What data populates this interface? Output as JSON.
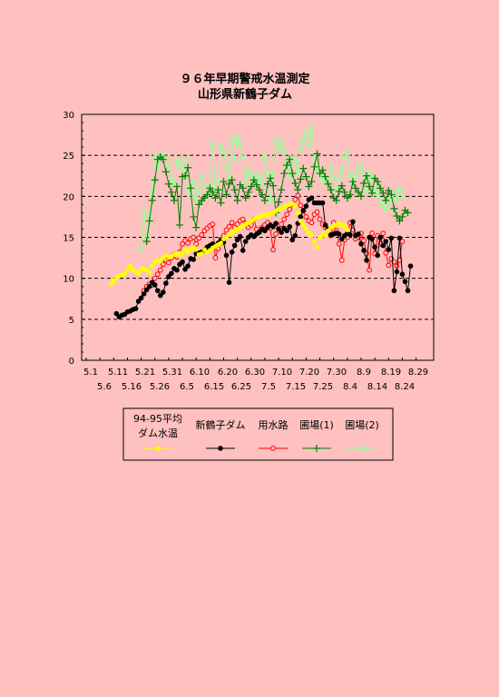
{
  "chart_data": {
    "type": "line",
    "title": "９６年早期警戒水温測定",
    "subtitle": "山形県新鶴子ダム",
    "xlabel": "",
    "ylabel": "",
    "ylim": [
      0,
      30
    ],
    "yticks": [
      "0",
      "5",
      "10",
      "15",
      "20",
      "25",
      "30"
    ],
    "x_start": "5.1",
    "x_end": "9.1",
    "xtick_labels_row1": [
      "5.1",
      "5.11",
      "5.21",
      "5.31",
      "6.10",
      "6.20",
      "6.30",
      "7.10",
      "7.20",
      "7.30",
      "8.9",
      "8.19",
      "8.29"
    ],
    "xtick_labels_row2": [
      "5.6",
      "5.16",
      "5.26",
      "6.5",
      "6.15",
      "6.25",
      "7.5",
      "7.15",
      "7.25",
      "8.4",
      "8.14",
      "8.24"
    ],
    "grid": "horizontal dashed",
    "legend_placement": "bottom",
    "series": [
      {
        "name": "94-95平均ダム水温",
        "name_line1": "94-95平均",
        "name_line2": "ダム水温",
        "color": "#ffff00",
        "marker": "dot",
        "start_day": 9,
        "values": [
          9.3,
          9.7,
          10.1,
          10.3,
          10.4,
          10.6,
          11.0,
          11.5,
          11.0,
          10.8,
          10.6,
          11.1,
          11.2,
          11.0,
          10.7,
          11.5,
          12.0,
          12.2,
          12.1,
          12.5,
          12.8,
          12.6,
          12.7,
          12.9,
          13.0,
          12.8,
          13.1,
          13.5,
          13.2,
          13.6,
          13.8,
          13.5,
          12.9,
          13.0,
          13.5,
          13.2,
          13.4,
          13.7,
          13.9,
          14.1,
          14.3,
          14.8,
          15.0,
          15.3,
          15.6,
          15.8,
          16.0,
          16.2,
          16.4,
          16.6,
          16.8,
          17.0,
          17.2,
          17.4,
          17.5,
          17.7,
          17.8,
          17.6,
          17.9,
          18.0,
          18.2,
          18.4,
          18.5,
          18.7,
          18.9,
          19.0,
          19.1,
          18.8,
          18.0,
          17.0,
          16.5,
          16.0,
          15.5,
          15.2,
          14.5,
          13.8,
          15.0,
          15.4,
          15.2,
          15.8,
          16.2,
          16.4,
          16.5,
          16.7,
          16.5,
          16.4,
          15.9
        ]
      },
      {
        "name": "新鶴子ダム",
        "color": "#000000",
        "marker": "filled-circle",
        "start_day": 11,
        "values": [
          5.7,
          5.3,
          5.5,
          5.6,
          5.9,
          6.0,
          6.2,
          6.3,
          7.2,
          7.6,
          8.1,
          8.6,
          9.0,
          9.5,
          9.2,
          8.5,
          7.9,
          8.3,
          9.4,
          10.2,
          10.6,
          11.2,
          11.0,
          11.7,
          12.0,
          11.1,
          11.5,
          12.4,
          12.3,
          13.0,
          13.1,
          13.2,
          13.5,
          13.8,
          14.0,
          14.2,
          13.9,
          14.3,
          14.7,
          14.4,
          12.8,
          9.5,
          13.2,
          14.0,
          14.7,
          15.1,
          13.4,
          14.5,
          15.0,
          15.3,
          15.1,
          15.4,
          15.6,
          16.0,
          15.8,
          16.2,
          16.5,
          16.3,
          16.7,
          16.0,
          15.6,
          16.1,
          15.8,
          16.3,
          14.7,
          15.2,
          16.7,
          17.5,
          18.3,
          18.8,
          19.6,
          19.8,
          19.2,
          19.2,
          19.2,
          19.2,
          16.5,
          16.0,
          15.3,
          15.4,
          15.5,
          15.4,
          14.8,
          15.2,
          15.5,
          15.3,
          16.9,
          15.2,
          15.4,
          14.2,
          13.4,
          12.2,
          15.0,
          14.8,
          13.8,
          12.8,
          15.0,
          14.0,
          14.5,
          13.5,
          14.9,
          8.5,
          10.8,
          14.9,
          10.5,
          9.6,
          8.5,
          11.5
        ]
      },
      {
        "name": "用水路",
        "color": "#ff0000",
        "marker": "open-circle",
        "start_day": 21,
        "values": [
          8.5,
          9.0,
          9.3,
          9.2,
          10.0,
          10.5,
          11.0,
          11.7,
          12.2,
          11.9,
          12.5,
          12.9,
          12.6,
          13.2,
          14.2,
          14.6,
          14.3,
          14.8,
          15.0,
          14.2,
          14.9,
          15.3,
          15.8,
          16.1,
          16.4,
          16.6,
          12.5,
          13.6,
          14.3,
          15.2,
          15.9,
          16.3,
          16.8,
          16.2,
          16.6,
          17.0,
          17.2,
          16.7,
          16.2,
          16.5,
          17.2,
          16.0,
          15.7,
          16.2,
          16.5,
          16.8,
          16.1,
          13.5,
          15.4,
          16.0,
          16.6,
          17.2,
          17.8,
          18.4,
          19.0,
          19.6,
          20.1,
          18.9,
          18.2,
          17.5,
          17.0,
          16.8,
          17.8,
          18.1,
          17.2,
          16.6,
          16.2,
          16.0,
          15.2,
          16.8,
          15.8,
          14.2,
          12.2,
          14.7,
          15.0,
          16.8,
          15.9,
          14.8,
          15.0,
          15.5,
          14.6,
          13.0,
          11.0,
          15.5,
          13.0,
          15.2,
          14.2,
          15.5,
          13.1,
          11.6,
          12.4,
          12.0,
          11.5,
          12.2,
          14.5
        ]
      },
      {
        "name": "圃場(1)",
        "color": "#008000",
        "marker": "plus",
        "start_day": 22,
        "values": [
          14.5,
          17.0,
          19.5,
          22.0,
          24.5,
          24.8,
          24.5,
          23.0,
          21.5,
          20.5,
          19.5,
          21.2,
          16.5,
          22.4,
          22.5,
          23.5,
          21.0,
          17.5,
          16.2,
          19.0,
          19.5,
          19.8,
          20.2,
          21.0,
          20.5,
          19.8,
          20.8,
          19.2,
          21.8,
          20.2,
          21.5,
          22.0,
          20.8,
          19.5,
          21.4,
          21.0,
          19.8,
          20.5,
          21.2,
          22.0,
          21.4,
          20.8,
          20.2,
          19.5,
          21.5,
          22.2,
          21.3,
          18.0,
          19.3,
          20.8,
          22.8,
          23.8,
          24.5,
          22.8,
          21.6,
          20.8,
          22.1,
          23.4,
          22.4,
          21.2,
          21.8,
          23.6,
          25.2,
          22.8,
          23.2,
          22.4,
          21.5,
          20.8,
          19.8,
          19.5,
          20.6,
          21.3,
          20.5,
          19.8,
          20.2,
          21.8,
          21.0,
          20.5,
          20.0,
          21.6,
          22.5,
          21.2,
          20.4,
          22.2,
          21.8,
          21.0,
          20.4,
          19.5,
          20.7,
          20.2,
          18.5,
          17.6,
          17.0,
          17.5,
          18.3,
          18.0
        ]
      },
      {
        "name": "圃場(2)",
        "color": "#99ff99",
        "marker": "cross",
        "start_day": 20,
        "values": [
          13.5,
          18.0,
          15.0,
          17.5,
          20.5,
          25.0,
          23.5,
          24.8,
          25.1,
          24.7,
          23.5,
          22.0,
          21.5,
          24.5,
          24.0,
          23.2,
          24.6,
          21.0,
          20.2,
          21.8,
          19.8,
          20.6,
          22.5,
          21.2,
          20.0,
          21.3,
          26.5,
          20.5,
          21.8,
          26.1,
          25.5,
          23.6,
          22.3,
          26.8,
          24.5,
          27.2,
          26.4,
          24.8,
          21.7,
          23.2,
          22.5,
          21.9,
          22.7,
          21.5,
          22.0,
          24.8,
          22.8,
          19.4,
          22.8,
          27.0,
          25.9,
          26.6,
          25.4,
          23.9,
          22.5,
          24.8,
          24.0,
          22.8,
          25.8,
          26.9,
          27.8,
          26.2,
          28.5,
          24.6,
          23.4,
          22.8,
          22.0,
          21.8,
          21.5,
          23.5,
          22.4,
          20.8,
          22.0,
          23.2,
          24.8,
          25.3,
          22.6,
          21.8,
          22.5,
          23.3,
          23.8,
          22.4,
          20.6,
          22.8,
          22.3,
          20.2,
          21.0,
          19.0,
          19.5,
          18.4,
          18.8,
          19.8,
          20.5,
          19.6,
          21.0,
          20.0
        ]
      }
    ]
  }
}
